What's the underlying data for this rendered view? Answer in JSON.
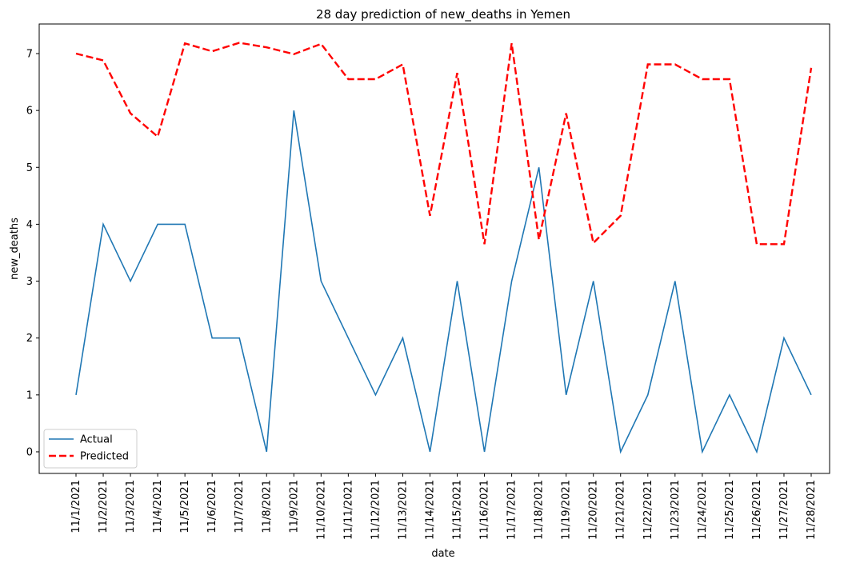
{
  "chart_data": {
    "type": "line",
    "title": "28 day prediction of new_deaths in Yemen",
    "xlabel": "date",
    "ylabel": "new_deaths",
    "categories": [
      "11/1/2021",
      "11/2/2021",
      "11/3/2021",
      "11/4/2021",
      "11/5/2021",
      "11/6/2021",
      "11/7/2021",
      "11/8/2021",
      "11/9/2021",
      "11/10/2021",
      "11/11/2021",
      "11/12/2021",
      "11/13/2021",
      "11/14/2021",
      "11/15/2021",
      "11/16/2021",
      "11/17/2021",
      "11/18/2021",
      "11/19/2021",
      "11/20/2021",
      "11/21/2021",
      "11/22/2021",
      "11/23/2021",
      "11/24/2021",
      "11/25/2021",
      "11/26/2021",
      "11/27/2021",
      "11/28/2021"
    ],
    "yticks": [
      0,
      1,
      2,
      3,
      4,
      5,
      6,
      7
    ],
    "ylim": [
      -0.38,
      7.52
    ],
    "grid": false,
    "legend_position": "lower-left",
    "series": [
      {
        "name": "Actual",
        "color": "#1f77b4",
        "style": "solid",
        "values": [
          1,
          4,
          3,
          4,
          4,
          2,
          2,
          0,
          6,
          3,
          2,
          1,
          2,
          0,
          3,
          0,
          3,
          5,
          1,
          3,
          0,
          1,
          3,
          0,
          1,
          0,
          2,
          1
        ]
      },
      {
        "name": "Predicted",
        "color": "#ff0000",
        "style": "dashed",
        "values": [
          7.0,
          6.88,
          5.95,
          5.54,
          7.18,
          7.04,
          7.19,
          7.11,
          6.99,
          7.17,
          6.55,
          6.55,
          6.81,
          4.15,
          6.66,
          3.65,
          7.18,
          3.73,
          5.95,
          3.67,
          4.15,
          6.81,
          6.81,
          6.55,
          6.55,
          3.65,
          3.65,
          6.75
        ]
      }
    ]
  }
}
